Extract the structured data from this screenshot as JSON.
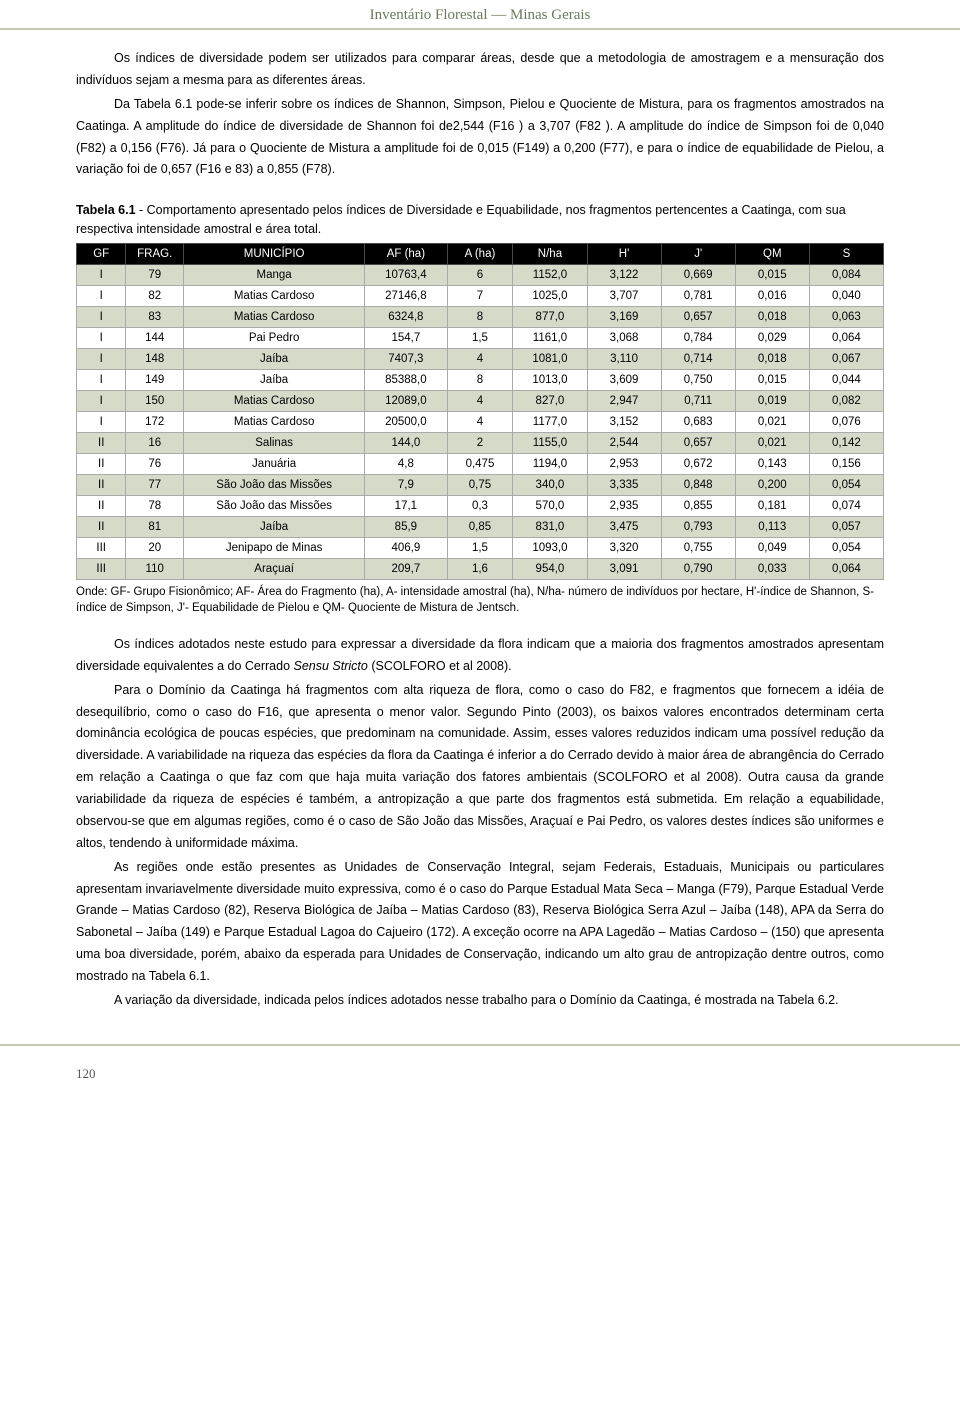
{
  "header": {
    "title": "Inventário Florestal — Minas Gerais"
  },
  "p1": "Os índices de diversidade podem ser utilizados para comparar áreas, desde que a metodologia de amostragem e a mensuração dos indivíduos sejam a mesma para as diferentes áreas.",
  "p2": "Da Tabela 6.1 pode-se inferir sobre os índices de Shannon, Simpson, Pielou e Quociente de Mistura, para os fragmentos amostrados na Caatinga. A amplitude do índice de diversidade de Shannon foi de2,544 (F16 ) a 3,707 (F82 ). A amplitude do índice de Simpson foi de 0,040 (F82) a 0,156 (F76). Já para o Quociente de Mistura a amplitude foi de 0,015 (F149) a 0,200 (F77), e para o índice de equabilidade de Pielou, a variação foi de 0,657 (F16 e 83) a 0,855 (F78).",
  "table_caption_bold": "Tabela 6.1",
  "table_caption_rest": " - Comportamento apresentado pelos índices de Diversidade e Equabilidade, nos fragmentos pertencentes a Caatinga, com sua respectiva intensidade amostral e área total.",
  "table": {
    "columns": [
      "GF",
      "FRAG.",
      "MUNICÍPIO",
      "AF (ha)",
      "A (ha)",
      "N/ha",
      "H'",
      "J'",
      "QM",
      "S"
    ],
    "col_widths": [
      "6%",
      "7%",
      "22%",
      "10%",
      "8%",
      "9%",
      "9%",
      "9%",
      "9%",
      "9%"
    ],
    "header_bg": "#000000",
    "header_fg": "#ffffff",
    "shaded_bg": "#d6dbc9",
    "plain_bg": "#ffffff",
    "border_color": "#aaaaaa",
    "fontsize": 11.5,
    "rows": [
      {
        "shaded": true,
        "cells": [
          "I",
          "79",
          "Manga",
          "10763,4",
          "6",
          "1152,0",
          "3,122",
          "0,669",
          "0,015",
          "0,084"
        ]
      },
      {
        "shaded": false,
        "cells": [
          "I",
          "82",
          "Matias Cardoso",
          "27146,8",
          "7",
          "1025,0",
          "3,707",
          "0,781",
          "0,016",
          "0,040"
        ]
      },
      {
        "shaded": true,
        "cells": [
          "I",
          "83",
          "Matias Cardoso",
          "6324,8",
          "8",
          "877,0",
          "3,169",
          "0,657",
          "0,018",
          "0,063"
        ]
      },
      {
        "shaded": false,
        "cells": [
          "I",
          "144",
          "Pai Pedro",
          "154,7",
          "1,5",
          "1161,0",
          "3,068",
          "0,784",
          "0,029",
          "0,064"
        ]
      },
      {
        "shaded": true,
        "cells": [
          "I",
          "148",
          "Jaíba",
          "7407,3",
          "4",
          "1081,0",
          "3,110",
          "0,714",
          "0,018",
          "0,067"
        ]
      },
      {
        "shaded": false,
        "cells": [
          "I",
          "149",
          "Jaíba",
          "85388,0",
          "8",
          "1013,0",
          "3,609",
          "0,750",
          "0,015",
          "0,044"
        ]
      },
      {
        "shaded": true,
        "cells": [
          "I",
          "150",
          "Matias Cardoso",
          "12089,0",
          "4",
          "827,0",
          "2,947",
          "0,711",
          "0,019",
          "0,082"
        ]
      },
      {
        "shaded": false,
        "cells": [
          "I",
          "172",
          "Matias Cardoso",
          "20500,0",
          "4",
          "1177,0",
          "3,152",
          "0,683",
          "0,021",
          "0,076"
        ]
      },
      {
        "shaded": true,
        "cells": [
          "II",
          "16",
          "Salinas",
          "144,0",
          "2",
          "1155,0",
          "2,544",
          "0,657",
          "0,021",
          "0,142"
        ]
      },
      {
        "shaded": false,
        "cells": [
          "II",
          "76",
          "Januária",
          "4,8",
          "0,475",
          "1194,0",
          "2,953",
          "0,672",
          "0,143",
          "0,156"
        ]
      },
      {
        "shaded": true,
        "cells": [
          "II",
          "77",
          "São João das Missões",
          "7,9",
          "0,75",
          "340,0",
          "3,335",
          "0,848",
          "0,200",
          "0,054"
        ]
      },
      {
        "shaded": false,
        "cells": [
          "II",
          "78",
          "São João das Missões",
          "17,1",
          "0,3",
          "570,0",
          "2,935",
          "0,855",
          "0,181",
          "0,074"
        ]
      },
      {
        "shaded": true,
        "cells": [
          "II",
          "81",
          "Jaíba",
          "85,9",
          "0,85",
          "831,0",
          "3,475",
          "0,793",
          "0,113",
          "0,057"
        ]
      },
      {
        "shaded": false,
        "cells": [
          "III",
          "20",
          "Jenipapo de Minas",
          "406,9",
          "1,5",
          "1093,0",
          "3,320",
          "0,755",
          "0,049",
          "0,054"
        ]
      },
      {
        "shaded": true,
        "cells": [
          "III",
          "110",
          "Araçuaí",
          "209,7",
          "1,6",
          "954,0",
          "3,091",
          "0,790",
          "0,033",
          "0,064"
        ]
      }
    ]
  },
  "footnote": "Onde: GF- Grupo Fisionômico; AF- Área do Fragmento (ha), A- intensidade amostral (ha), N/ha- número de indivíduos por hectare, H'-índice de Shannon, S- índice de Simpson, J'- Equabilidade de Pielou e QM- Quociente de Mistura de Jentsch.",
  "p3a": "Os índices adotados neste estudo para expressar a diversidade da flora indicam que a maioria dos fragmentos amostrados apresentam diversidade equivalentes a do Cerrado ",
  "p3b": "Sensu Stricto",
  "p3c": " (SCOLFORO et al 2008).",
  "p4": "Para o Domínio da Caatinga há fragmentos com alta riqueza de flora, como o caso do F82, e fragmentos que fornecem a idéia de desequilíbrio, como o caso do F16, que apresenta o menor valor. Segundo Pinto (2003), os baixos valores encontrados determinam certa dominância ecológica de poucas espécies, que predominam na comunidade. Assim, esses valores reduzidos indicam uma possível redução da diversidade. A variabilidade na riqueza das espécies da flora da Caatinga é inferior a do Cerrado devido à maior área de abrangência do Cerrado em relação a Caatinga o que faz com que haja muita variação dos fatores ambientais (SCOLFORO et al 2008). Outra causa da grande variabilidade da riqueza de espécies é também, a antropização a que parte dos fragmentos está submetida. Em relação a equabilidade, observou-se que em algumas regiões, como é o caso de São João das Missões, Araçuaí e Pai Pedro, os valores destes índices são uniformes e altos, tendendo à uniformidade máxima.",
  "p5": "As regiões onde estão presentes as Unidades de Conservação Integral, sejam Federais, Estaduais, Municipais ou particulares apresentam invariavelmente diversidade muito expressiva, como é o caso do Parque Estadual Mata Seca – Manga (F79), Parque Estadual Verde Grande – Matias Cardoso (82), Reserva Biológica de Jaíba – Matias Cardoso (83), Reserva Biológica Serra Azul – Jaíba (148), APA da Serra do Sabonetal – Jaíba (149) e Parque Estadual Lagoa do Cajueiro (172). A exceção ocorre na APA Lagedão – Matias Cardoso – (150) que apresenta uma boa diversidade, porém, abaixo da esperada para Unidades de Conservação, indicando um alto grau de antropização dentre outros, como mostrado na Tabela 6.1.",
  "p6": "A variação da diversidade, indicada pelos índices adotados nesse trabalho para o Domínio da Caatinga, é mostrada na Tabela 6.2.",
  "page_number": "120"
}
